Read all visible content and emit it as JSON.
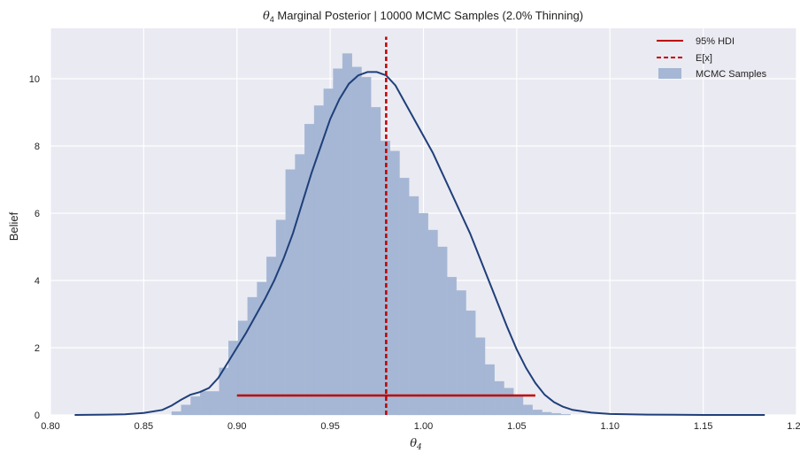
{
  "chart_data": {
    "type": "bar",
    "title_symbol": "θ",
    "title_subscript": "4",
    "title_rest": " Marginal Posterior | 10000 MCMC Samples (2.0% Thinning)",
    "xlabel_symbol": "θ",
    "xlabel_subscript": "4",
    "ylabel": "Belief",
    "xlim": [
      0.8,
      1.2
    ],
    "ylim": [
      0,
      11.5
    ],
    "x_ticks": [
      0.8,
      0.85,
      0.9,
      0.95,
      1.0,
      1.05,
      1.1,
      1.15,
      1.2
    ],
    "x_tick_labels": [
      "0.80",
      "0.85",
      "0.90",
      "0.95",
      "1.00",
      "1.05",
      "1.10",
      "1.15",
      "1.20"
    ],
    "y_ticks": [
      0,
      2,
      4,
      6,
      8,
      10
    ],
    "y_tick_labels": [
      "0",
      "2",
      "4",
      "6",
      "8",
      "10"
    ],
    "grid": true,
    "legend_position": "top-right",
    "legend": [
      {
        "label": "95% HDI",
        "style": "solid-line"
      },
      {
        "label": "E[x]",
        "style": "dashed-line"
      },
      {
        "label": "MCMC Samples",
        "style": "patch"
      }
    ],
    "histogram": {
      "name": "MCMC Samples",
      "bin_edges": [
        0.865,
        0.8701,
        0.8752,
        0.8803,
        0.8854,
        0.8905,
        0.8955,
        0.9006,
        0.9057,
        0.9108,
        0.9159,
        0.921,
        0.9261,
        0.9312,
        0.9363,
        0.9414,
        0.9465,
        0.9516,
        0.9566,
        0.9617,
        0.9668,
        0.9719,
        0.977,
        0.9821,
        0.9872,
        0.9923,
        0.9974,
        1.0025,
        1.0076,
        1.0127,
        1.0177,
        1.0228,
        1.0279,
        1.033,
        1.0381,
        1.0432,
        1.0483,
        1.0534,
        1.0585,
        1.0636,
        1.0687,
        1.0737,
        1.0788
      ],
      "heights": [
        0.1,
        0.3,
        0.55,
        0.7,
        0.7,
        1.4,
        2.2,
        2.8,
        3.5,
        3.95,
        4.7,
        5.8,
        7.3,
        7.75,
        8.65,
        9.2,
        9.7,
        10.3,
        10.75,
        10.35,
        10.05,
        9.15,
        8.15,
        7.85,
        7.05,
        6.5,
        6.0,
        5.5,
        5.0,
        4.1,
        3.7,
        3.1,
        2.3,
        1.5,
        1.0,
        0.8,
        0.55,
        0.3,
        0.15,
        0.08,
        0.05,
        0.02
      ],
      "color": "#a5b7d4"
    },
    "kde": {
      "x": [
        0.813,
        0.83,
        0.84,
        0.85,
        0.86,
        0.865,
        0.87,
        0.875,
        0.88,
        0.885,
        0.89,
        0.895,
        0.9,
        0.905,
        0.91,
        0.915,
        0.92,
        0.925,
        0.93,
        0.935,
        0.94,
        0.945,
        0.95,
        0.955,
        0.96,
        0.965,
        0.97,
        0.975,
        0.98,
        0.985,
        0.99,
        0.995,
        1.0,
        1.005,
        1.01,
        1.015,
        1.02,
        1.025,
        1.03,
        1.035,
        1.04,
        1.045,
        1.05,
        1.055,
        1.06,
        1.065,
        1.07,
        1.075,
        1.08,
        1.09,
        1.1,
        1.12,
        1.15,
        1.183
      ],
      "y": [
        0.0,
        0.01,
        0.02,
        0.06,
        0.15,
        0.28,
        0.45,
        0.6,
        0.68,
        0.8,
        1.1,
        1.55,
        2.0,
        2.45,
        2.95,
        3.45,
        4.0,
        4.65,
        5.4,
        6.3,
        7.2,
        8.0,
        8.8,
        9.4,
        9.85,
        10.1,
        10.2,
        10.2,
        10.1,
        9.8,
        9.3,
        8.8,
        8.3,
        7.8,
        7.2,
        6.6,
        6.0,
        5.4,
        4.7,
        4.0,
        3.3,
        2.6,
        1.95,
        1.4,
        0.95,
        0.6,
        0.38,
        0.24,
        0.15,
        0.07,
        0.03,
        0.01,
        0.0,
        0.0
      ],
      "color": "#1f3f7a"
    },
    "expected_value": {
      "label": "E[x]",
      "x": 0.98,
      "y_top": 11.25,
      "color": "#c00000"
    },
    "hdi_95": {
      "label": "95% HDI",
      "x_start": 0.9,
      "x_end": 1.06,
      "y": 0.58,
      "color": "#c00000"
    }
  }
}
